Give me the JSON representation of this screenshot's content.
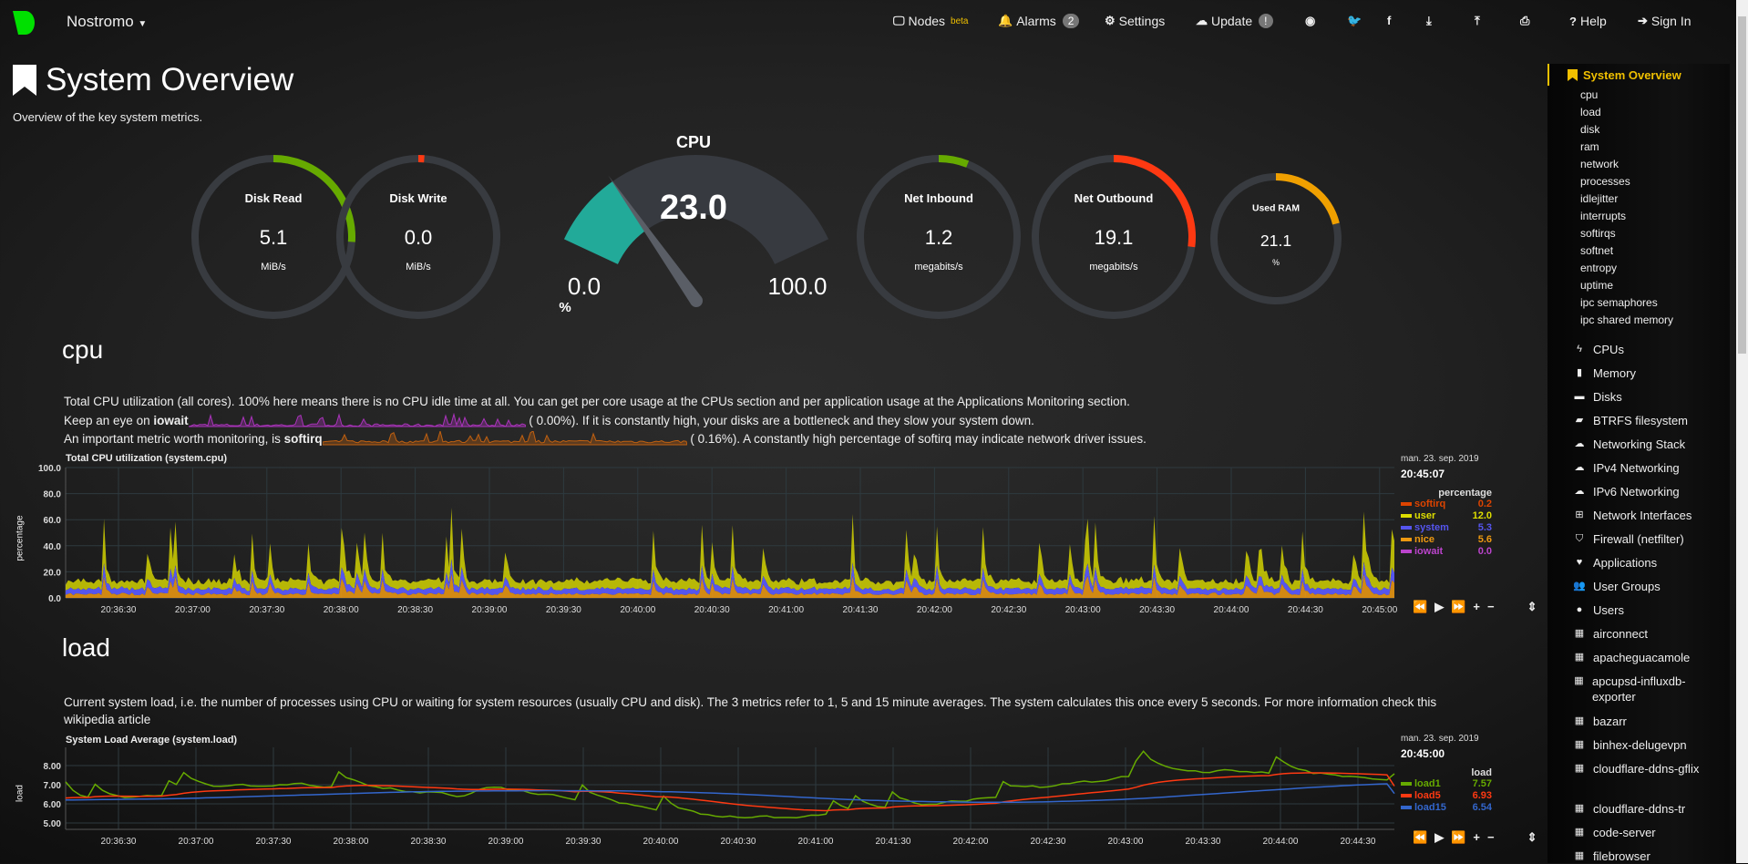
{
  "header": {
    "brand": "Nostromo",
    "nav": [
      {
        "label": "Nodes",
        "badge": "beta",
        "icon": "monitor-icon"
      },
      {
        "label": "Alarms",
        "badge": "2",
        "icon": "bell-icon"
      },
      {
        "label": "Settings",
        "icon": "gear-icon"
      },
      {
        "label": "Update",
        "badge": "!",
        "icon": "cloud-download-icon"
      },
      {
        "label": "",
        "icon": "github-icon"
      },
      {
        "label": "",
        "icon": "twitter-icon"
      },
      {
        "label": "",
        "icon": "facebook-icon"
      },
      {
        "label": "",
        "icon": "download-icon"
      },
      {
        "label": "",
        "icon": "upload-icon"
      },
      {
        "label": "",
        "icon": "print-icon"
      },
      {
        "label": "Help",
        "icon": "help-icon"
      },
      {
        "label": "Sign In",
        "icon": "sign-in-icon"
      }
    ]
  },
  "page": {
    "title": "System Overview",
    "subtitle": "Overview of the key system metrics."
  },
  "gauges": [
    {
      "title": "Disk Read",
      "value": "5.1",
      "unit": "MiB/s",
      "fill_fraction": 0.26,
      "color": "#66aa00"
    },
    {
      "title": "Disk Write",
      "value": "0.0",
      "unit": "MiB/s",
      "fill_fraction": 0.01,
      "color": "#fe3912"
    },
    {
      "title": "Net Inbound",
      "value": "1.2",
      "unit": "megabits/s",
      "fill_fraction": 0.06,
      "color": "#66aa00"
    },
    {
      "title": "Net Outbound",
      "value": "19.1",
      "unit": "megabits/s",
      "fill_fraction": 0.27,
      "color": "#fe3912"
    },
    {
      "title": "Used RAM",
      "value": "21.1",
      "unit": "%",
      "fill_fraction": 0.211,
      "color": "#f0a000"
    }
  ],
  "cpu_gauge": {
    "title": "CPU",
    "value": "23.0",
    "min": "0.0",
    "max": "100.0",
    "unit": "%",
    "fraction": 0.23,
    "color": "#22aa99"
  },
  "cpu": {
    "heading": "cpu",
    "p1": "Total CPU utilization (all cores). 100% here means there is no CPU idle time at all. You can get per core usage at the CPUs section and per application usage at the Applications Monitoring section.",
    "p2a": "Keep an eye on ",
    "p2b": "iowait",
    "p2c": "(      0.00%). If it is constantly high, your disks are a bottleneck and they slow your system down.",
    "p3a": "An important metric worth monitoring, is ",
    "p3b": "softirq",
    "p3c": "(      0.16%). A constantly high percentage of softirq may indicate network driver issues.",
    "chart_title": "Total CPU utilization (system.cpu)",
    "ylabel": "percentage",
    "yticks": [
      "100.0",
      "80.0",
      "60.0",
      "40.0",
      "20.0",
      "0.0"
    ],
    "xticks": [
      "20:36:30",
      "20:37:00",
      "20:37:30",
      "20:38:00",
      "20:38:30",
      "20:39:00",
      "20:39:30",
      "20:40:00",
      "20:40:30",
      "20:41:00",
      "20:41:30",
      "20:42:00",
      "20:42:30",
      "20:43:00",
      "20:43:30",
      "20:44:00",
      "20:44:30",
      "20:45:00"
    ],
    "legend": {
      "date": "man. 23. sep. 2019",
      "time": "20:45:07",
      "unit": "percentage",
      "items": [
        {
          "name": "softirq",
          "value": "0.2",
          "color": "#dd4400"
        },
        {
          "name": "user",
          "value": "12.0",
          "color": "#dddd00"
        },
        {
          "name": "system",
          "value": "5.3",
          "color": "#5555ee"
        },
        {
          "name": "nice",
          "value": "5.6",
          "color": "#ee9911"
        },
        {
          "name": "iowait",
          "value": "0.0",
          "color": "#bb44cc"
        }
      ]
    }
  },
  "load": {
    "heading": "load",
    "p1": "Current system load, i.e. the number of processes using CPU or waiting for system resources (usually CPU and disk). The 3 metrics refer to 1, 5 and 15 minute averages. The system calculates this once every 5 seconds. For more information check this",
    "p2": "wikipedia article",
    "chart_title": "System Load Average (system.load)",
    "ylabel": "load",
    "yticks": [
      "8.00",
      "7.00",
      "6.00",
      "5.00"
    ],
    "xticks": [
      "20:36:30",
      "20:37:00",
      "20:37:30",
      "20:38:00",
      "20:38:30",
      "20:39:00",
      "20:39:30",
      "20:40:00",
      "20:40:30",
      "20:41:00",
      "20:41:30",
      "20:42:00",
      "20:42:30",
      "20:43:00",
      "20:43:30",
      "20:44:00",
      "20:44:30"
    ],
    "legend": {
      "date": "man. 23. sep. 2019",
      "time": "20:45:00",
      "unit": "load",
      "items": [
        {
          "name": "load1",
          "value": "7.57",
          "color": "#66aa00"
        },
        {
          "name": "load5",
          "value": "6.93",
          "color": "#fe3912"
        },
        {
          "name": "load15",
          "value": "6.54",
          "color": "#3366cc"
        }
      ]
    }
  },
  "controls": [
    "⏪",
    "▶",
    "⏩",
    "+",
    "−",
    "⇕"
  ],
  "sidebar": {
    "active": "System Overview",
    "sub": [
      "cpu",
      "load",
      "disk",
      "ram",
      "network",
      "processes",
      "idlejitter",
      "interrupts",
      "softirqs",
      "softnet",
      "entropy",
      "uptime",
      "ipc semaphores",
      "ipc shared memory"
    ],
    "main": [
      {
        "label": "CPUs",
        "icon": "bolt-icon",
        "glyph": "ϟ"
      },
      {
        "label": "Memory",
        "icon": "memory-icon",
        "glyph": "▮"
      },
      {
        "label": "Disks",
        "icon": "hdd-icon",
        "glyph": "▬"
      },
      {
        "label": "BTRFS filesystem",
        "icon": "folder-icon",
        "glyph": "▰"
      },
      {
        "label": "Networking Stack",
        "icon": "cloud-icon",
        "glyph": "☁"
      },
      {
        "label": "IPv4 Networking",
        "icon": "cloud-icon",
        "glyph": "☁"
      },
      {
        "label": "IPv6 Networking",
        "icon": "cloud-icon",
        "glyph": "☁"
      },
      {
        "label": "Network Interfaces",
        "icon": "sitemap-icon",
        "glyph": "⊞"
      },
      {
        "label": "Firewall (netfilter)",
        "icon": "shield-icon",
        "glyph": "⛉"
      },
      {
        "label": "Applications",
        "icon": "heartbeat-icon",
        "glyph": "♥"
      },
      {
        "label": "User Groups",
        "icon": "users-icon",
        "glyph": "👥"
      },
      {
        "label": "Users",
        "icon": "user-icon",
        "glyph": "●"
      },
      {
        "label": "airconnect",
        "icon": "grid-icon",
        "glyph": "▦"
      },
      {
        "label": "apacheguacamole",
        "icon": "grid-icon",
        "glyph": "▦"
      },
      {
        "label": "apcupsd-influxdb-exporter",
        "icon": "grid-icon",
        "glyph": "▦"
      },
      {
        "label": "bazarr",
        "icon": "grid-icon",
        "glyph": "▦"
      },
      {
        "label": "binhex-delugevpn",
        "icon": "grid-icon",
        "glyph": "▦"
      },
      {
        "label": "cloudflare-ddns-gflix",
        "icon": "grid-icon",
        "glyph": "▦"
      },
      {
        "label": "cloudflare-ddns-tr",
        "icon": "grid-icon",
        "glyph": "▦"
      },
      {
        "label": "code-server",
        "icon": "grid-icon",
        "glyph": "▦"
      },
      {
        "label": "filebrowser",
        "icon": "grid-icon",
        "glyph": "▦"
      }
    ]
  }
}
